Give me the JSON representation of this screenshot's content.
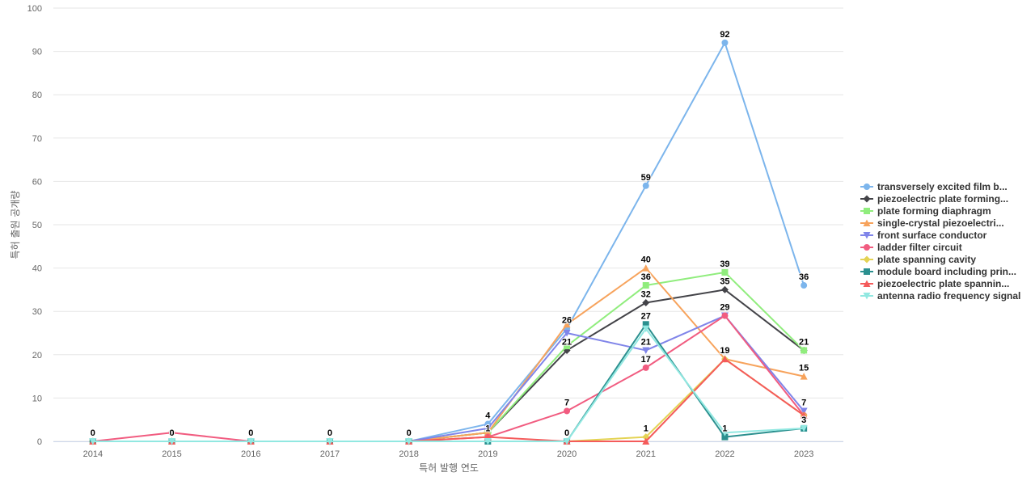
{
  "chart_data": {
    "type": "line",
    "title": "",
    "xlabel": "특허 발행 연도",
    "ylabel": "특허 출원 공개량",
    "ylim": [
      0,
      100
    ],
    "yticks": [
      "0",
      "10",
      "20",
      "30",
      "40",
      "50",
      "60",
      "70",
      "80",
      "90",
      "100"
    ],
    "x": [
      "2014",
      "2015",
      "2016",
      "2017",
      "2018",
      "2019",
      "2020",
      "2021",
      "2022",
      "2023"
    ],
    "grid": true,
    "legend_position": "right",
    "series": [
      {
        "name": "transversely excited film b...",
        "color": "#7cb5ec",
        "marker": "circle",
        "values": [
          0,
          0,
          0,
          0,
          0,
          4,
          26,
          59,
          92,
          36
        ]
      },
      {
        "name": "piezoelectric plate forming...",
        "color": "#434348",
        "marker": "diamond",
        "values": [
          0,
          0,
          0,
          0,
          0,
          2,
          21,
          32,
          35,
          21
        ]
      },
      {
        "name": "plate forming diaphragm",
        "color": "#90ed7d",
        "marker": "square",
        "values": [
          0,
          0,
          0,
          0,
          0,
          2,
          22,
          36,
          39,
          21
        ]
      },
      {
        "name": "single-crystal piezoelectri...",
        "color": "#f7a35c",
        "marker": "triangle",
        "values": [
          0,
          0,
          0,
          0,
          0,
          2,
          27,
          40,
          19,
          15
        ]
      },
      {
        "name": "front surface conductor",
        "color": "#8085e9",
        "marker": "triangle-down",
        "values": [
          0,
          0,
          0,
          0,
          0,
          3,
          25,
          21,
          29,
          7
        ]
      },
      {
        "name": "ladder filter circuit",
        "color": "#f15c80",
        "marker": "circle",
        "values": [
          0,
          2,
          0,
          0,
          0,
          1,
          7,
          17,
          29,
          6
        ]
      },
      {
        "name": "plate spanning cavity",
        "color": "#e4d354",
        "marker": "diamond",
        "values": [
          0,
          0,
          0,
          0,
          0,
          0,
          0,
          1,
          19,
          6
        ]
      },
      {
        "name": "module board including prin...",
        "color": "#2b908f",
        "marker": "square",
        "values": [
          0,
          0,
          0,
          0,
          0,
          0,
          0,
          27,
          1,
          3
        ]
      },
      {
        "name": "piezoelectric plate spannin...",
        "color": "#f45b5b",
        "marker": "triangle",
        "values": [
          0,
          0,
          0,
          0,
          0,
          1,
          0,
          0,
          19,
          6
        ]
      },
      {
        "name": "antenna radio frequency signal",
        "color": "#91e8e1",
        "marker": "triangle-down",
        "values": [
          0,
          0,
          0,
          0,
          0,
          0,
          0,
          26,
          2,
          3
        ]
      }
    ],
    "data_labels": [
      {
        "x": "2014",
        "value": "0"
      },
      {
        "x": "2015",
        "value": "0"
      },
      {
        "x": "2016",
        "value": "0"
      },
      {
        "x": "2017",
        "value": "0"
      },
      {
        "x": "2018",
        "value": "0"
      },
      {
        "x": "2019",
        "value": "4"
      },
      {
        "x": "2019",
        "value": "1"
      },
      {
        "x": "2020",
        "value": "26"
      },
      {
        "x": "2020",
        "value": "21"
      },
      {
        "x": "2020",
        "value": "7"
      },
      {
        "x": "2020",
        "value": "0"
      },
      {
        "x": "2021",
        "value": "59"
      },
      {
        "x": "2021",
        "value": "40"
      },
      {
        "x": "2021",
        "value": "36"
      },
      {
        "x": "2021",
        "value": "32"
      },
      {
        "x": "2021",
        "value": "27"
      },
      {
        "x": "2021",
        "value": "21"
      },
      {
        "x": "2021",
        "value": "17"
      },
      {
        "x": "2021",
        "value": "1"
      },
      {
        "x": "2022",
        "value": "92"
      },
      {
        "x": "2022",
        "value": "39"
      },
      {
        "x": "2022",
        "value": "35"
      },
      {
        "x": "2022",
        "value": "29"
      },
      {
        "x": "2022",
        "value": "19"
      },
      {
        "x": "2022",
        "value": "1"
      },
      {
        "x": "2023",
        "value": "36"
      },
      {
        "x": "2023",
        "value": "21"
      },
      {
        "x": "2023",
        "value": "15"
      },
      {
        "x": "2023",
        "value": "7"
      },
      {
        "x": "2023",
        "value": "3"
      }
    ]
  }
}
